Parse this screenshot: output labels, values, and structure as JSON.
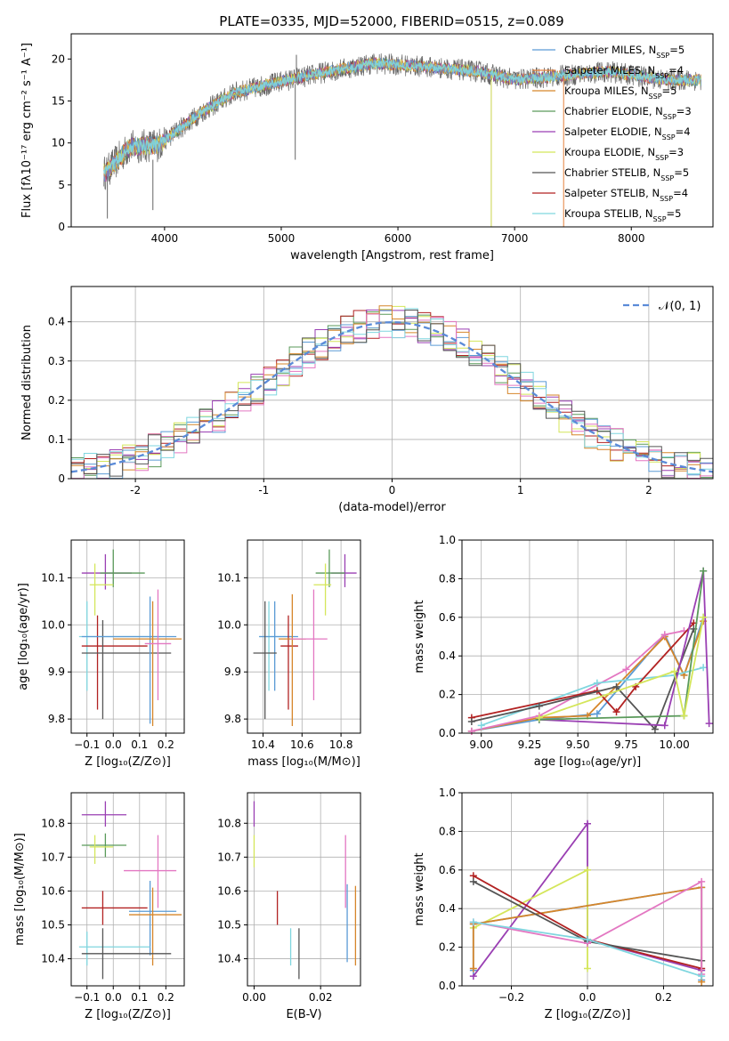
{
  "figure": {
    "title": "PLATE=0335, MJD=52000, FIBERID=0515, z=0.089"
  },
  "colors": {
    "Chabrier MILES": "#5b9bd5",
    "Salpeter MILES": "#e4803b",
    "Kroupa MILES": "#d6862a",
    "Chabrier ELODIE": "#5a9a5a",
    "Salpeter ELODIE": "#9a3fb3",
    "Kroupa ELODIE": "#d4e65a",
    "Chabrier STELIB": "#555555",
    "Salpeter STELIB": "#b22222",
    "Kroupa STELIB": "#7fd6df",
    "pink": "#e377c2",
    "normal": "#5b8bd8"
  },
  "legend": {
    "entries": [
      {
        "name": "Chabrier MILES",
        "label": "Chabrier MILES, N",
        "sub": "SSP",
        "n": "=5"
      },
      {
        "name": "Salpeter MILES",
        "label": "Salpeter MILES, N",
        "sub": "SSP",
        "n": "=4"
      },
      {
        "name": "Kroupa MILES",
        "label": "Kroupa MILES, N",
        "sub": "SSP",
        "n": "=5"
      },
      {
        "name": "Chabrier ELODIE",
        "label": "Chabrier ELODIE, N",
        "sub": "SSP",
        "n": "=3"
      },
      {
        "name": "Salpeter ELODIE",
        "label": "Salpeter ELODIE, N",
        "sub": "SSP",
        "n": "=4"
      },
      {
        "name": "Kroupa ELODIE",
        "label": "Kroupa ELODIE, N",
        "sub": "SSP",
        "n": "=3"
      },
      {
        "name": "Chabrier STELIB",
        "label": "Chabrier STELIB, N",
        "sub": "SSP",
        "n": "=5"
      },
      {
        "name": "Salpeter STELIB",
        "label": "Salpeter STELIB, N",
        "sub": "SSP",
        "n": "=4"
      },
      {
        "name": "Kroupa STELIB",
        "label": "Kroupa STELIB, N",
        "sub": "SSP",
        "n": "=5"
      }
    ]
  },
  "chart_data": [
    {
      "id": "spectrum",
      "type": "line",
      "xlabel": "wavelength [Angstrom, rest frame]",
      "ylabel": "Flux [fλ10⁻¹⁷ erg cm⁻² s⁻¹ A⁻¹]",
      "xlim": [
        3200,
        8700
      ],
      "ylim": [
        0,
        23
      ],
      "xticks": [
        4000,
        5000,
        6000,
        7000,
        8000
      ],
      "yticks": [
        0,
        5,
        10,
        15,
        20
      ],
      "continuum": {
        "x": [
          3500,
          3700,
          3950,
          4300,
          4600,
          5000,
          5400,
          5800,
          6300,
          6700,
          7000,
          7400,
          7800,
          8300
        ],
        "y": [
          6.5,
          9.5,
          9.8,
          13.5,
          16.0,
          17.3,
          18.5,
          19.5,
          19.0,
          18.5,
          17.5,
          18.0,
          18.5,
          17.5
        ]
      },
      "spikes": [
        {
          "x": 5120,
          "from": 17,
          "to": 8
        },
        {
          "x": 5130,
          "from": 17,
          "to": 20.5
        },
        {
          "x": 6800,
          "from": 18,
          "to": 0
        },
        {
          "x": 7420,
          "from": 18,
          "to": 0
        },
        {
          "x": 3510,
          "from": 6,
          "to": 1
        },
        {
          "x": 3900,
          "from": 8,
          "to": 2
        }
      ]
    },
    {
      "id": "residual-hist",
      "type": "bar",
      "xlabel": "(data-model)/error",
      "ylabel": "Normed distribution",
      "xlim": [
        -2.5,
        2.5
      ],
      "ylim": [
        0,
        0.49
      ],
      "xticks": [
        -2,
        -1,
        0,
        1,
        2
      ],
      "yticks": [
        0.0,
        0.1,
        0.2,
        0.3,
        0.4
      ],
      "legend_label": "𝒩(0, 1)",
      "bin_width": 0.1
    },
    {
      "id": "age-vs-Z",
      "type": "scatter",
      "xlabel": "Z [log₁₀(Z/Z⊙)]",
      "ylabel": "age  [log₁₀(age/yr)]",
      "xlim": [
        -0.16,
        0.27
      ],
      "ylim": [
        9.77,
        10.18
      ],
      "xticks": [
        -0.1,
        0.0,
        0.1,
        0.2
      ],
      "xtick_labels": [
        "−0.1",
        "0.0",
        "0.1",
        "0.2"
      ],
      "yticks": [
        9.8,
        9.9,
        10.0,
        10.1
      ],
      "ytick_labels": [
        "9.8",
        "9.9",
        "10.0",
        "10.1"
      ],
      "points": [
        {
          "c": "Salpeter ELODIE",
          "x": -0.03,
          "xl": -0.12,
          "xh": 0.07,
          "y": 10.11,
          "yl": 10.075,
          "yh": 10.15
        },
        {
          "c": "Chabrier ELODIE",
          "x": 0.0,
          "xl": -0.05,
          "xh": 0.12,
          "y": 10.11,
          "yl": 10.08,
          "yh": 10.16
        },
        {
          "c": "Kroupa ELODIE",
          "x": -0.07,
          "xl": -0.09,
          "xh": 0.0,
          "y": 10.085,
          "yl": 10.02,
          "yh": 10.13
        },
        {
          "c": "Kroupa STELIB",
          "x": -0.1,
          "xl": -0.13,
          "xh": 0.18,
          "y": 9.975,
          "yl": 9.86,
          "yh": 10.05
        },
        {
          "c": "Salpeter STELIB",
          "x": -0.06,
          "xl": -0.12,
          "xh": 0.13,
          "y": 9.955,
          "yl": 9.82,
          "yh": 10.02
        },
        {
          "c": "Chabrier STELIB",
          "x": -0.04,
          "xl": -0.12,
          "xh": 0.22,
          "y": 9.94,
          "yl": 9.8,
          "yh": 10.01
        },
        {
          "c": "Chabrier MILES",
          "x": 0.14,
          "xl": -0.12,
          "xh": 0.24,
          "y": 9.975,
          "yl": 9.79,
          "yh": 10.06
        },
        {
          "c": "Kroupa MILES",
          "x": 0.15,
          "xl": 0.0,
          "xh": 0.26,
          "y": 9.97,
          "yl": 9.785,
          "yh": 10.05
        },
        {
          "c": "pink",
          "x": 0.17,
          "xl": 0.12,
          "xh": 0.22,
          "y": 9.96,
          "yl": 9.84,
          "yh": 10.075
        }
      ]
    },
    {
      "id": "age-vs-mass",
      "type": "scatter",
      "xlabel": "mass [log₁₀(M/M⊙)]",
      "xlim": [
        10.32,
        10.9
      ],
      "ylim": [
        9.77,
        10.18
      ],
      "xticks": [
        10.4,
        10.6,
        10.8
      ],
      "xtick_labels": [
        "10.4",
        "10.6",
        "10.8"
      ],
      "yticks": [
        9.8,
        9.9,
        10.0,
        10.1
      ],
      "ytick_labels": [
        "9.8",
        "9.9",
        "10.0",
        "10.1"
      ],
      "points": [
        {
          "c": "Salpeter ELODIE",
          "x": 10.82,
          "xl": 10.75,
          "xh": 10.88,
          "y": 10.11,
          "yl": 10.08,
          "yh": 10.15
        },
        {
          "c": "Chabrier ELODIE",
          "x": 10.74,
          "xl": 10.67,
          "xh": 10.82,
          "y": 10.11,
          "yl": 10.08,
          "yh": 10.16
        },
        {
          "c": "Kroupa ELODIE",
          "x": 10.72,
          "xl": 10.66,
          "xh": 10.75,
          "y": 10.085,
          "yl": 10.02,
          "yh": 10.13
        },
        {
          "c": "Kroupa STELIB",
          "x": 10.43,
          "xl": 10.38,
          "xh": 10.55,
          "y": 9.975,
          "yl": 9.86,
          "yh": 10.05
        },
        {
          "c": "Chabrier MILES",
          "x": 10.46,
          "xl": 10.38,
          "xh": 10.58,
          "y": 9.975,
          "yl": 9.86,
          "yh": 10.05
        },
        {
          "c": "Chabrier STELIB",
          "x": 10.41,
          "xl": 10.35,
          "xh": 10.47,
          "y": 9.94,
          "yl": 9.8,
          "yh": 10.05
        },
        {
          "c": "Salpeter STELIB",
          "x": 10.53,
          "xl": 10.49,
          "xh": 10.58,
          "y": 9.955,
          "yl": 9.82,
          "yh": 10.02
        },
        {
          "c": "Kroupa MILES",
          "x": 10.55,
          "xl": 10.48,
          "xh": 10.62,
          "y": 9.97,
          "yl": 9.785,
          "yh": 10.065
        },
        {
          "c": "pink",
          "x": 10.66,
          "xl": 10.54,
          "xh": 10.73,
          "y": 9.97,
          "yl": 9.84,
          "yh": 10.075
        }
      ]
    },
    {
      "id": "weight-vs-age",
      "type": "line",
      "xlabel": "age  [log₁₀(age/yr)]",
      "ylabel": "mass weight",
      "xlim": [
        8.9,
        10.2
      ],
      "ylim": [
        0,
        1
      ],
      "xticks": [
        9.0,
        9.25,
        9.5,
        9.75,
        10.0
      ],
      "xtick_labels": [
        "9.00",
        "9.25",
        "9.50",
        "9.75",
        "10.00"
      ],
      "yticks": [
        0.0,
        0.2,
        0.4,
        0.6,
        0.8,
        1.0
      ],
      "ytick_labels": [
        "0.0",
        "0.2",
        "0.4",
        "0.6",
        "0.8",
        "1.0"
      ],
      "series": [
        {
          "c": "Chabrier MILES",
          "x": [
            8.95,
            9.3,
            9.6,
            9.95,
            10.05,
            10.15
          ],
          "y": [
            0.01,
            0.07,
            0.1,
            0.51,
            0.3,
            0.6
          ]
        },
        {
          "c": "Kroupa MILES",
          "x": [
            8.95,
            9.3,
            9.55,
            9.95,
            10.05,
            10.15
          ],
          "y": [
            0.01,
            0.08,
            0.09,
            0.5,
            0.3,
            0.58
          ]
        },
        {
          "c": "pink",
          "x": [
            8.95,
            9.3,
            9.75,
            9.95,
            10.05
          ],
          "y": [
            0.01,
            0.09,
            0.33,
            0.51,
            0.53
          ]
        },
        {
          "c": "Kroupa STELIB",
          "x": [
            9.0,
            9.6,
            10.0,
            10.15
          ],
          "y": [
            0.04,
            0.26,
            0.3,
            0.34
          ]
        },
        {
          "c": "Salpeter STELIB",
          "x": [
            8.95,
            9.6,
            9.7,
            9.8,
            10.1
          ],
          "y": [
            0.08,
            0.22,
            0.11,
            0.24,
            0.57
          ]
        },
        {
          "c": "Chabrier STELIB",
          "x": [
            8.95,
            9.3,
            9.7,
            9.9,
            10.1
          ],
          "y": [
            0.06,
            0.14,
            0.24,
            0.02,
            0.54
          ]
        },
        {
          "c": "Salpeter ELODIE",
          "x": [
            9.3,
            9.95,
            10.15,
            10.18
          ],
          "y": [
            0.07,
            0.04,
            0.84,
            0.05
          ]
        },
        {
          "c": "Chabrier ELODIE",
          "x": [
            9.3,
            10.05,
            10.15
          ],
          "y": [
            0.07,
            0.09,
            0.84
          ]
        },
        {
          "c": "Kroupa ELODIE",
          "x": [
            9.3,
            10.0,
            10.05,
            10.15
          ],
          "y": [
            0.08,
            0.32,
            0.09,
            0.6
          ]
        }
      ]
    },
    {
      "id": "mass-vs-Z",
      "type": "scatter",
      "xlabel": "Z [log₁₀(Z/Z⊙)]",
      "ylabel": "mass [log₁₀(M/M⊙)]",
      "xlim": [
        -0.16,
        0.27
      ],
      "ylim": [
        10.32,
        10.89
      ],
      "xticks": [
        -0.1,
        0.0,
        0.1,
        0.2
      ],
      "xtick_labels": [
        "−0.1",
        "0.0",
        "0.1",
        "0.2"
      ],
      "yticks": [
        10.4,
        10.5,
        10.6,
        10.7,
        10.8
      ],
      "ytick_labels": [
        "10.4",
        "10.5",
        "10.6",
        "10.7",
        "10.8"
      ],
      "points": [
        {
          "c": "Salpeter ELODIE",
          "x": -0.03,
          "xl": -0.12,
          "xh": 0.05,
          "y": 10.825,
          "yl": 10.79,
          "yh": 10.865
        },
        {
          "c": "Chabrier ELODIE",
          "x": -0.03,
          "xl": -0.12,
          "xh": 0.05,
          "y": 10.735,
          "yl": 10.7,
          "yh": 10.77
        },
        {
          "c": "Kroupa ELODIE",
          "x": -0.07,
          "xl": -0.09,
          "xh": 0.0,
          "y": 10.73,
          "yl": 10.68,
          "yh": 10.765
        },
        {
          "c": "pink",
          "x": 0.17,
          "xl": 0.04,
          "xh": 0.24,
          "y": 10.66,
          "yl": 10.55,
          "yh": 10.765
        },
        {
          "c": "Salpeter STELIB",
          "x": -0.04,
          "xl": -0.12,
          "xh": 0.13,
          "y": 10.55,
          "yl": 10.5,
          "yh": 10.6
        },
        {
          "c": "Chabrier MILES",
          "x": 0.14,
          "xl": 0.06,
          "xh": 0.24,
          "y": 10.54,
          "yl": 10.41,
          "yh": 10.63
        },
        {
          "c": "Kroupa MILES",
          "x": 0.15,
          "xl": 0.06,
          "xh": 0.26,
          "y": 10.53,
          "yl": 10.38,
          "yh": 10.61
        },
        {
          "c": "Kroupa STELIB",
          "x": -0.1,
          "xl": -0.13,
          "xh": 0.14,
          "y": 10.435,
          "yl": 10.38,
          "yh": 10.48
        },
        {
          "c": "Chabrier STELIB",
          "x": -0.04,
          "xl": -0.12,
          "xh": 0.22,
          "y": 10.415,
          "yl": 10.34,
          "yh": 10.49
        }
      ]
    },
    {
      "id": "mass-vs-EBV",
      "type": "scatter",
      "xlabel": "E(B-V)",
      "xlim": [
        -0.002,
        0.032
      ],
      "ylim": [
        10.32,
        10.89
      ],
      "xticks": [
        0.0,
        0.02
      ],
      "xtick_labels": [
        "0.00",
        "0.02"
      ],
      "yticks": [
        10.4,
        10.5,
        10.6,
        10.7,
        10.8
      ],
      "ytick_labels": [
        "10.4",
        "10.5",
        "10.6",
        "10.7",
        "10.8"
      ],
      "points": [
        {
          "c": "Salpeter ELODIE",
          "x": 0.0,
          "y": 10.825,
          "yl": 10.79,
          "yh": 10.865
        },
        {
          "c": "Kroupa ELODIE",
          "x": 0.0,
          "y": 10.72,
          "yl": 10.67,
          "yh": 10.765
        },
        {
          "c": "Salpeter STELIB",
          "x": 0.007,
          "y": 10.55,
          "yl": 10.5,
          "yh": 10.6
        },
        {
          "c": "Kroupa STELIB",
          "x": 0.011,
          "y": 10.43,
          "yl": 10.38,
          "yh": 10.49
        },
        {
          "c": "Chabrier STELIB",
          "x": 0.0135,
          "y": 10.415,
          "yl": 10.34,
          "yh": 10.49
        },
        {
          "c": "pink",
          "x": 0.0275,
          "y": 10.66,
          "yl": 10.55,
          "yh": 10.765
        },
        {
          "c": "Chabrier MILES",
          "x": 0.028,
          "y": 10.52,
          "yl": 10.39,
          "yh": 10.62
        },
        {
          "c": "Kroupa MILES",
          "x": 0.0305,
          "y": 10.5,
          "yl": 10.38,
          "yh": 10.615
        }
      ]
    },
    {
      "id": "weight-vs-Z",
      "type": "line",
      "xlabel": "Z [log₁₀(Z/Z⊙)]",
      "ylabel": "mass weight",
      "xlim": [
        -0.33,
        0.33
      ],
      "ylim": [
        0,
        1
      ],
      "xticks": [
        -0.2,
        0.0,
        0.2
      ],
      "xtick_labels": [
        "−0.2",
        "0.0",
        "0.2"
      ],
      "yticks": [
        0.0,
        0.2,
        0.4,
        0.6,
        0.8,
        1.0
      ],
      "ytick_labels": [
        "0.0",
        "0.2",
        "0.4",
        "0.6",
        "0.8",
        "1.0"
      ],
      "series": [
        {
          "c": "Salpeter ELODIE",
          "x": [
            -0.3,
            0.0,
            0.0,
            0.3
          ],
          "y": [
            0.05,
            0.84,
            0.24,
            0.08
          ]
        },
        {
          "c": "Kroupa ELODIE",
          "x": [
            -0.3,
            0.0,
            0.0
          ],
          "y": [
            0.3,
            0.6,
            0.09
          ]
        },
        {
          "c": "Chabrier MILES",
          "x": [
            -0.3,
            -0.3,
            0.3,
            0.3
          ],
          "y": [
            0.08,
            0.32,
            0.51,
            0.03
          ]
        },
        {
          "c": "Kroupa MILES",
          "x": [
            -0.3,
            -0.3,
            0.3,
            0.3
          ],
          "y": [
            0.09,
            0.32,
            0.51,
            0.02
          ]
        },
        {
          "c": "Salpeter STELIB",
          "x": [
            -0.3,
            0.0,
            0.3
          ],
          "y": [
            0.57,
            0.24,
            0.09
          ]
        },
        {
          "c": "Chabrier STELIB",
          "x": [
            -0.3,
            0.0,
            0.3
          ],
          "y": [
            0.54,
            0.23,
            0.13
          ]
        },
        {
          "c": "pink",
          "x": [
            -0.3,
            0.0,
            0.3,
            0.3
          ],
          "y": [
            0.33,
            0.22,
            0.54,
            0.06
          ]
        },
        {
          "c": "Kroupa STELIB",
          "x": [
            -0.3,
            0.0,
            0.3
          ],
          "y": [
            0.33,
            0.24,
            0.05
          ]
        }
      ]
    }
  ]
}
